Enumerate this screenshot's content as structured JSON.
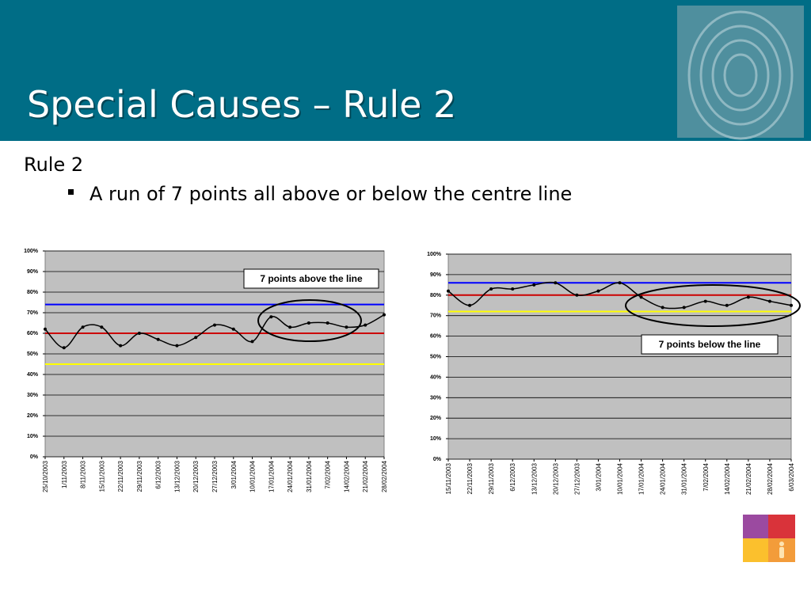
{
  "header": {
    "title": "Special Causes – Rule 2"
  },
  "body": {
    "heading": "Rule 2",
    "bullet": "A run of 7 points all above or below the centre line"
  },
  "chart_data": [
    {
      "type": "line",
      "categories": [
        "25/10/2003",
        "1/11/2003",
        "8/11/2003",
        "15/11/2003",
        "22/11/2003",
        "29/11/2003",
        "6/12/2003",
        "13/12/2003",
        "20/12/2003",
        "27/12/2003",
        "3/01/2004",
        "10/01/2004",
        "17/01/2004",
        "24/01/2004",
        "31/01/2004",
        "7/02/2004",
        "14/02/2004",
        "21/02/2004",
        "28/02/2004"
      ],
      "series": [
        {
          "color": "#000000",
          "values": [
            62,
            53,
            63,
            63,
            54,
            60,
            57,
            54,
            58,
            64,
            62,
            56,
            68,
            63,
            65,
            65,
            63,
            64,
            69
          ]
        }
      ],
      "reference_lines": [
        {
          "value": 74,
          "color": "#0000ff"
        },
        {
          "value": 60,
          "color": "#cc0000"
        },
        {
          "value": 45,
          "color": "#ffff00"
        }
      ],
      "ylim": [
        0,
        100
      ],
      "yticks": [
        {
          "value": 0,
          "label": "0%"
        },
        {
          "value": 10,
          "label": "10%"
        },
        {
          "value": 20,
          "label": "20%"
        },
        {
          "value": 30,
          "label": "30%"
        },
        {
          "value": 40,
          "label": "40%"
        },
        {
          "value": 50,
          "label": "50%"
        },
        {
          "value": 60,
          "label": "60%"
        },
        {
          "value": 70,
          "label": "70%"
        },
        {
          "value": 80,
          "label": "80%"
        },
        {
          "value": 90,
          "label": "90%"
        },
        {
          "value": 100,
          "label": "100%"
        }
      ],
      "grid": true,
      "annotation": "7 points above the line"
    },
    {
      "type": "line",
      "categories": [
        "15/11/2003",
        "22/11/2003",
        "29/11/2003",
        "6/12/2003",
        "13/12/2003",
        "20/12/2003",
        "27/12/2003",
        "3/01/2004",
        "10/01/2004",
        "17/01/2004",
        "24/01/2004",
        "31/01/2004",
        "7/02/2004",
        "14/02/2004",
        "21/02/2004",
        "28/02/2004",
        "6/03/2004"
      ],
      "series": [
        {
          "color": "#000000",
          "values": [
            82,
            75,
            83,
            83,
            85,
            86,
            80,
            82,
            86,
            79,
            74,
            74,
            77,
            75,
            79,
            77,
            75
          ]
        }
      ],
      "reference_lines": [
        {
          "value": 86,
          "color": "#0000ff"
        },
        {
          "value": 80,
          "color": "#cc0000"
        },
        {
          "value": 72,
          "color": "#ffff00"
        }
      ],
      "ylim": [
        0,
        100
      ],
      "yticks": [
        {
          "value": 0,
          "label": "0%"
        },
        {
          "value": 10,
          "label": "10%"
        },
        {
          "value": 20,
          "label": "20%"
        },
        {
          "value": 30,
          "label": "30%"
        },
        {
          "value": 40,
          "label": "40%"
        },
        {
          "value": 50,
          "label": "50%"
        },
        {
          "value": 60,
          "label": "60%"
        },
        {
          "value": 70,
          "label": "70%"
        },
        {
          "value": 80,
          "label": "80%"
        },
        {
          "value": 90,
          "label": "90%"
        },
        {
          "value": 100,
          "label": "100%"
        }
      ],
      "grid": true,
      "annotation": "7 points below the line"
    }
  ]
}
